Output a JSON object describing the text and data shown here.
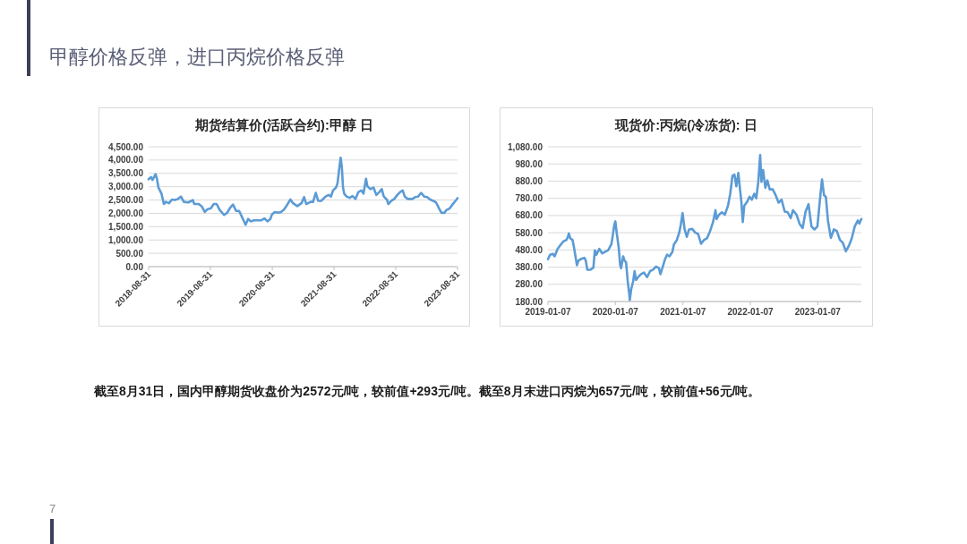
{
  "chart_data": [
    {
      "type": "other",
      "title": "甲醇价格反弹，进口丙烷价格反弹"
    },
    {
      "type": "line",
      "title": "期货结算价(活跃合约):甲醇 日",
      "x": [
        "2018-08-31",
        "2018-09-14",
        "2018-09-23",
        "2018-10-11",
        "2018-10-19",
        "2018-10-28",
        "2018-11-15",
        "2018-11-29",
        "2018-12-11",
        "2018-12-29",
        "2019-01-16",
        "2019-02-02",
        "2019-02-20",
        "2019-03-10",
        "2019-03-27",
        "2019-04-23",
        "2019-05-19",
        "2019-05-28",
        "2019-06-23",
        "2019-07-11",
        "2019-07-29",
        "2019-08-15",
        "2019-09-02",
        "2019-09-20",
        "2019-10-07",
        "2019-10-25",
        "2019-11-20",
        "2019-12-08",
        "2019-12-26",
        "2020-01-12",
        "2020-01-30",
        "2020-02-17",
        "2020-03-02",
        "2020-03-14",
        "2020-03-26",
        "2020-04-10",
        "2020-04-27",
        "2020-05-15",
        "2020-06-10",
        "2020-06-28",
        "2020-07-16",
        "2020-08-02",
        "2020-08-20",
        "2020-08-29",
        "2020-09-15",
        "2020-10-03",
        "2020-10-21",
        "2020-11-07",
        "2020-11-25",
        "2020-12-16",
        "2020-12-30",
        "2021-01-26",
        "2021-02-21",
        "2021-03-07",
        "2021-03-20",
        "2021-04-15",
        "2021-04-29",
        "2021-05-15",
        "2021-05-29",
        "2021-06-16",
        "2021-07-12",
        "2021-07-30",
        "2021-08-13",
        "2021-08-25",
        "2021-09-12",
        "2021-09-21",
        "2021-09-30",
        "2021-10-09",
        "2021-10-16",
        "2021-10-23",
        "2021-10-30",
        "2021-11-13",
        "2021-12-01",
        "2021-12-18",
        "2022-01-05",
        "2022-01-22",
        "2022-02-09",
        "2022-02-21",
        "2022-03-08",
        "2022-03-16",
        "2022-04-03",
        "2022-04-21",
        "2022-05-08",
        "2022-05-26",
        "2022-06-09",
        "2022-06-21",
        "2022-07-09",
        "2022-07-18",
        "2022-08-05",
        "2022-08-22",
        "2022-09-09",
        "2022-09-26",
        "2022-10-11",
        "2022-10-23",
        "2022-11-10",
        "2022-12-06",
        "2022-12-24",
        "2023-01-10",
        "2023-01-28",
        "2023-02-15",
        "2023-03-04",
        "2023-03-22",
        "2023-04-09",
        "2023-04-26",
        "2023-05-14",
        "2023-05-28",
        "2023-06-15",
        "2023-06-27",
        "2023-07-15",
        "2023-08-01",
        "2023-08-19",
        "2023-08-31"
      ],
      "series": [
        {
          "color": "#5b9bd5",
          "values": [
            3280,
            3360,
            3250,
            3470,
            3300,
            2970,
            2740,
            2350,
            2430,
            2380,
            2520,
            2500,
            2540,
            2630,
            2430,
            2410,
            2500,
            2350,
            2350,
            2260,
            2050,
            2160,
            2180,
            2350,
            2350,
            2130,
            1940,
            2020,
            2210,
            2330,
            2090,
            2090,
            1900,
            1740,
            1570,
            1790,
            1700,
            1740,
            1740,
            1740,
            1810,
            1700,
            1790,
            1960,
            2050,
            2020,
            2050,
            2130,
            2300,
            2520,
            2390,
            2270,
            2390,
            2610,
            2350,
            2430,
            2430,
            2770,
            2470,
            2470,
            2630,
            2690,
            2630,
            2860,
            2970,
            3140,
            3640,
            4090,
            3750,
            2970,
            2740,
            2630,
            2580,
            2650,
            2540,
            2800,
            2860,
            2740,
            3300,
            3020,
            2910,
            2970,
            2690,
            2800,
            2910,
            2630,
            2520,
            2350,
            2470,
            2540,
            2690,
            2800,
            2860,
            2630,
            2540,
            2540,
            2610,
            2630,
            2770,
            2630,
            2610,
            2520,
            2470,
            2410,
            2180,
            2020,
            2020,
            2130,
            2180,
            2330,
            2470,
            2570
          ]
        }
      ],
      "xlim": [
        "2018-08-31",
        "2023-08-31"
      ],
      "xticks": [
        "2018-08-31",
        "2019-08-31",
        "2020-08-31",
        "2021-08-31",
        "2022-08-31",
        "2023-08-31"
      ],
      "ylim": [
        0,
        4500
      ],
      "yticks": [
        {
          "value": 0,
          "label": "0.00"
        },
        {
          "value": 500,
          "label": "500.00"
        },
        {
          "value": 1000,
          "label": "1,000.00"
        },
        {
          "value": 1500,
          "label": "1,500.00"
        },
        {
          "value": 2000,
          "label": "2,000.00"
        },
        {
          "value": 2500,
          "label": "2,500.00"
        },
        {
          "value": 3000,
          "label": "3,000.00"
        },
        {
          "value": 3500,
          "label": "3,500.00"
        },
        {
          "value": 4000,
          "label": "4,000.00"
        },
        {
          "value": 4500,
          "label": "4,500.00"
        }
      ],
      "grid": "y"
    },
    {
      "type": "line",
      "title": "现货价:丙烷(冷冻货): 日",
      "x": [
        "2019-01-07",
        "2019-01-18",
        "2019-02-03",
        "2019-02-12",
        "2019-02-28",
        "2019-03-16",
        "2019-04-01",
        "2019-04-17",
        "2019-04-25",
        "2019-04-30",
        "2019-05-08",
        "2019-05-20",
        "2019-05-28",
        "2019-06-05",
        "2019-06-13",
        "2019-06-21",
        "2019-07-07",
        "2019-07-23",
        "2019-07-31",
        "2019-08-08",
        "2019-08-25",
        "2019-09-10",
        "2019-09-18",
        "2019-09-26",
        "2019-10-12",
        "2019-10-28",
        "2019-11-13",
        "2019-11-29",
        "2019-12-16",
        "2019-12-24",
        "2020-01-01",
        "2020-01-07",
        "2020-01-14",
        "2020-01-25",
        "2020-02-02",
        "2020-02-07",
        "2020-02-18",
        "2020-02-26",
        "2020-03-05",
        "2020-03-14",
        "2020-03-22",
        "2020-03-25",
        "2020-04-02",
        "2020-04-12",
        "2020-04-20",
        "2020-04-28",
        "2020-05-09",
        "2020-05-25",
        "2020-06-10",
        "2020-06-27",
        "2020-07-13",
        "2020-07-29",
        "2020-08-14",
        "2020-08-30",
        "2020-09-07",
        "2020-09-20",
        "2020-10-02",
        "2020-10-13",
        "2020-10-26",
        "2020-11-11",
        "2020-11-19",
        "2020-12-05",
        "2020-12-18",
        "2020-12-26",
        "2021-01-05",
        "2021-01-16",
        "2021-01-28",
        "2021-02-09",
        "2021-02-26",
        "2021-03-14",
        "2021-03-30",
        "2021-04-15",
        "2021-05-01",
        "2021-05-17",
        "2021-06-03",
        "2021-06-19",
        "2021-07-02",
        "2021-07-08",
        "2021-07-21",
        "2021-08-06",
        "2021-08-22",
        "2021-09-08",
        "2021-09-20",
        "2021-10-02",
        "2021-10-13",
        "2021-10-23",
        "2021-11-03",
        "2021-11-11",
        "2021-11-19",
        "2021-11-27",
        "2021-12-05",
        "2021-12-22",
        "2022-01-02",
        "2022-01-15",
        "2022-01-28",
        "2022-02-08",
        "2022-02-19",
        "2022-03-01",
        "2022-03-08",
        "2022-03-17",
        "2022-03-29",
        "2022-04-09",
        "2022-04-22",
        "2022-05-08",
        "2022-05-24",
        "2022-06-09",
        "2022-06-25",
        "2022-07-12",
        "2022-07-28",
        "2022-08-13",
        "2022-08-26",
        "2022-09-14",
        "2022-09-30",
        "2022-10-17",
        "2022-11-02",
        "2022-11-18",
        "2022-12-04",
        "2022-12-20",
        "2023-01-05",
        "2023-01-22",
        "2023-01-30",
        "2023-02-10",
        "2023-02-20",
        "2023-03-03",
        "2023-03-19",
        "2023-04-04",
        "2023-04-20",
        "2023-05-07",
        "2023-05-23",
        "2023-06-08",
        "2023-06-24",
        "2023-07-10",
        "2023-07-26",
        "2023-08-12",
        "2023-08-20",
        "2023-08-31"
      ],
      "series": [
        {
          "color": "#5b9bd5",
          "values": [
            426,
            452,
            457,
            443,
            486,
            509,
            530,
            538,
            556,
            576,
            547,
            538,
            495,
            443,
            391,
            417,
            429,
            434,
            417,
            365,
            365,
            377,
            478,
            452,
            486,
            460,
            469,
            478,
            512,
            564,
            625,
            646,
            581,
            495,
            391,
            374,
            443,
            417,
            408,
            296,
            227,
            189,
            253,
            296,
            357,
            305,
            322,
            339,
            348,
            322,
            357,
            365,
            383,
            374,
            339,
            383,
            426,
            452,
            443,
            469,
            512,
            538,
            581,
            625,
            694,
            599,
            556,
            599,
            602,
            581,
            573,
            516,
            538,
            547,
            590,
            642,
            711,
            659,
            685,
            699,
            685,
            737,
            807,
            910,
            918,
            850,
            928,
            841,
            763,
            642,
            737,
            763,
            789,
            772,
            807,
            780,
            876,
            1032,
            876,
            945,
            841,
            884,
            832,
            832,
            798,
            755,
            772,
            703,
            699,
            665,
            711,
            685,
            633,
            607,
            703,
            746,
            616,
            599,
            616,
            807,
            890,
            798,
            789,
            651,
            550,
            599,
            590,
            538,
            521,
            472,
            503,
            547,
            616,
            651,
            633,
            660
          ]
        }
      ],
      "xlim": [
        "2019-01-07",
        "2023-08-31"
      ],
      "xticks": [
        "2019-01-07",
        "2020-01-07",
        "2021-01-07",
        "2022-01-07",
        "2023-01-07"
      ],
      "ylim": [
        180,
        1080
      ],
      "yticks": [
        {
          "value": 180,
          "label": "180.00"
        },
        {
          "value": 280,
          "label": "280.00"
        },
        {
          "value": 380,
          "label": "380.00"
        },
        {
          "value": 480,
          "label": "480.00"
        },
        {
          "value": 580,
          "label": "580.00"
        },
        {
          "value": 680,
          "label": "680.00"
        },
        {
          "value": 780,
          "label": "780.00"
        },
        {
          "value": 880,
          "label": "880.00"
        },
        {
          "value": 980,
          "label": "980.00"
        },
        {
          "value": 1080,
          "label": "1,080.00"
        }
      ],
      "grid": "y"
    },
    {
      "type": "other",
      "annotations": [
        "截至8月31日，国内甲醇期货收盘价为2572元/吨，较前值+293元/吨。截至8月末进口丙烷为657元/吨，较前值+56元/吨。",
        "7"
      ]
    }
  ]
}
